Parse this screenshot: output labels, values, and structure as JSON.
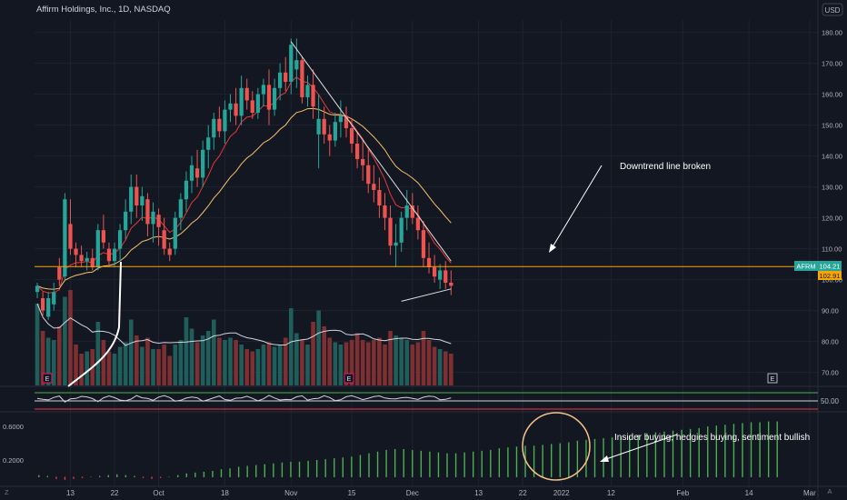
{
  "header": {
    "symbol_title": "Affirm Holdings, Inc., 1D, NASDAQ",
    "currency": "USD"
  },
  "colors": {
    "background": "#131722",
    "grid": "#1f2330",
    "up": "#26a69a",
    "down": "#ef5350",
    "volume_up": "#1f5e5b",
    "volume_down": "#7d2f31",
    "ema_fast": "#e53935",
    "ema_slow": "#f9c06b",
    "hline": "#f7a600",
    "trend": "#e0e0e0",
    "indicator_bar": "#4caf50",
    "indicator_bar_neg": "#f23645",
    "circle": "#f5c28a",
    "text": "#b2b5be"
  },
  "annotations": {
    "downtrend_text": "Downtrend line broken",
    "insider_text": "Insider buying, hedgies buying, sentiment bullish"
  },
  "price_badges": {
    "ticker": "AFRM",
    "last": "104.21",
    "second": "102.91"
  },
  "osc_badge": "50.00",
  "event_markers": [
    "E",
    "E",
    "E"
  ],
  "bottom_icons": {
    "left": "Z",
    "right": "A"
  },
  "chart_data": [
    {
      "type": "candlestick",
      "title": "Affirm Holdings, Inc., 1D, NASDAQ",
      "y_ticks": [
        70,
        80,
        90,
        100,
        110,
        120,
        130,
        140,
        150,
        160,
        170,
        180
      ],
      "y_tick_labels": [
        "70.00",
        "80.00",
        "90.00",
        "100.00",
        "110.00",
        "120.00",
        "130.00",
        "140.00",
        "150.00",
        "160.00",
        "170.00",
        "180.00"
      ],
      "ylim": [
        64,
        184
      ],
      "x_tick_labels": [
        "13",
        "22",
        "Oct",
        "18",
        "Nov",
        "15",
        "Dec",
        "13",
        "22",
        "2022",
        "12",
        "Feb",
        "14",
        "Mar"
      ],
      "x_tick_index": [
        6,
        14,
        22,
        34,
        46,
        57,
        68,
        80,
        88,
        95,
        104,
        117,
        129,
        140
      ],
      "n_slots": 142,
      "ohlc": [
        [
          96,
          99,
          94,
          98
        ],
        [
          94,
          96,
          88,
          90
        ],
        [
          88,
          96,
          87,
          94
        ],
        [
          92,
          99,
          90,
          96
        ],
        [
          104,
          107,
          98,
          100
        ],
        [
          101,
          128,
          100,
          126
        ],
        [
          118,
          126,
          108,
          110
        ],
        [
          110,
          112,
          104,
          108
        ],
        [
          108,
          111,
          104,
          106
        ],
        [
          106,
          109,
          103,
          107
        ],
        [
          107,
          110,
          103,
          104
        ],
        [
          104,
          118,
          103,
          116
        ],
        [
          116,
          121,
          110,
          112
        ],
        [
          110,
          112,
          104,
          106
        ],
        [
          106,
          112,
          104,
          110
        ],
        [
          110,
          118,
          106,
          116
        ],
        [
          116,
          126,
          113,
          122
        ],
        [
          122,
          134,
          118,
          130
        ],
        [
          130,
          134,
          120,
          124
        ],
        [
          124,
          130,
          119,
          127
        ],
        [
          126,
          128,
          114,
          118
        ],
        [
          118,
          125,
          112,
          122
        ],
        [
          121,
          123,
          111,
          117
        ],
        [
          116,
          120,
          108,
          110
        ],
        [
          110,
          112,
          106,
          108
        ],
        [
          110,
          122,
          108,
          120
        ],
        [
          120,
          128,
          116,
          126
        ],
        [
          126,
          135,
          122,
          132
        ],
        [
          132,
          140,
          128,
          137
        ],
        [
          136,
          142,
          130,
          133
        ],
        [
          133,
          145,
          130,
          142
        ],
        [
          142,
          150,
          136,
          146
        ],
        [
          146,
          154,
          142,
          152
        ],
        [
          152,
          156,
          146,
          148
        ],
        [
          148,
          158,
          144,
          155
        ],
        [
          155,
          160,
          151,
          157
        ],
        [
          157,
          162,
          150,
          153
        ],
        [
          153,
          166,
          150,
          162
        ],
        [
          162,
          165,
          155,
          158
        ],
        [
          158,
          161,
          152,
          154
        ],
        [
          154,
          162,
          152,
          160
        ],
        [
          160,
          165,
          156,
          163
        ],
        [
          163,
          168,
          150,
          155
        ],
        [
          155,
          165,
          153,
          162
        ],
        [
          162,
          170,
          158,
          167
        ],
        [
          167,
          172,
          161,
          164
        ],
        [
          164,
          178,
          160,
          176
        ],
        [
          168,
          178,
          162,
          171
        ],
        [
          171,
          172,
          157,
          159
        ],
        [
          159,
          166,
          156,
          163
        ],
        [
          163,
          168,
          152,
          156
        ],
        [
          147,
          160,
          136,
          152
        ],
        [
          152,
          156,
          144,
          147
        ],
        [
          147,
          150,
          140,
          145
        ],
        [
          145,
          154,
          143,
          151
        ],
        [
          151,
          158,
          146,
          153
        ],
        [
          153,
          156,
          146,
          149
        ],
        [
          149,
          152,
          141,
          144
        ],
        [
          144,
          148,
          136,
          139
        ],
        [
          139,
          145,
          132,
          137
        ],
        [
          137,
          142,
          128,
          131
        ],
        [
          131,
          137,
          125,
          129
        ],
        [
          129,
          133,
          120,
          124
        ],
        [
          124,
          128,
          116,
          120
        ],
        [
          120,
          124,
          108,
          111
        ],
        [
          111,
          118,
          104,
          112
        ],
        [
          112,
          122,
          109,
          120
        ],
        [
          120,
          129,
          116,
          124
        ],
        [
          124,
          128,
          118,
          120
        ],
        [
          120,
          124,
          113,
          116
        ],
        [
          116,
          119,
          104,
          107
        ],
        [
          107,
          112,
          102,
          104
        ],
        [
          104,
          108,
          99,
          101
        ],
        [
          100,
          105,
          97,
          103
        ],
        [
          103,
          106,
          97,
          99
        ],
        [
          99,
          103,
          95,
          98
        ]
      ],
      "volume": [
        3.6,
        2.4,
        2.1,
        2.0,
        2.6,
        3.9,
        4.2,
        1.8,
        1.4,
        1.5,
        1.6,
        2.8,
        2.0,
        1.5,
        1.4,
        1.7,
        1.9,
        2.9,
        2.2,
        1.7,
        2.1,
        1.6,
        1.6,
        1.8,
        1.3,
        1.8,
        2.0,
        3.0,
        2.5,
        1.9,
        2.2,
        2.4,
        2.9,
        2.1,
        2.0,
        2.1,
        2.0,
        1.8,
        1.6,
        1.5,
        1.6,
        1.8,
        1.9,
        1.7,
        1.8,
        2.1,
        3.4,
        2.3,
        2.0,
        1.8,
        2.8,
        3.3,
        2.6,
        2.1,
        1.9,
        1.8,
        1.9,
        2.0,
        2.3,
        2.0,
        1.9,
        2.0,
        2.1,
        1.8,
        2.4,
        2.2,
        2.1,
        2.0,
        1.8,
        1.9,
        2.4,
        2.0,
        1.7,
        1.6,
        1.5,
        1.4
      ],
      "annotation": "Downtrend line broken"
    },
    {
      "type": "bar",
      "y_tick_labels": [
        "0.2000",
        "0.6000"
      ],
      "ylim": [
        -0.06,
        0.72
      ],
      "values": [
        0.02,
        0.01,
        -0.02,
        -0.03,
        -0.02,
        -0.01,
        0.0,
        0.01,
        0.02,
        0.03,
        0.02,
        0.01,
        -0.01,
        -0.02,
        -0.01,
        0.0,
        0.02,
        0.04,
        0.05,
        0.06,
        0.07,
        0.09,
        0.1,
        0.12,
        0.13,
        0.14,
        0.15,
        0.16,
        0.17,
        0.18,
        0.18,
        0.19,
        0.2,
        0.21,
        0.22,
        0.23,
        0.24,
        0.26,
        0.28,
        0.3,
        0.32,
        0.33,
        0.33,
        0.32,
        0.31,
        0.3,
        0.29,
        0.28,
        0.28,
        0.29,
        0.3,
        0.31,
        0.32,
        0.34,
        0.35,
        0.36,
        0.37,
        0.37,
        0.38,
        0.39,
        0.4,
        0.41,
        0.43,
        0.44,
        0.45,
        0.46,
        0.47,
        0.48,
        0.49,
        0.5,
        0.52,
        0.53,
        0.54,
        0.55,
        0.56,
        0.57,
        0.58,
        0.6,
        0.61,
        0.62,
        0.63,
        0.64,
        0.65,
        0.65,
        0.66,
        0.66
      ],
      "annotation": "Insider buying, hedgies buying, sentiment bullish"
    }
  ]
}
